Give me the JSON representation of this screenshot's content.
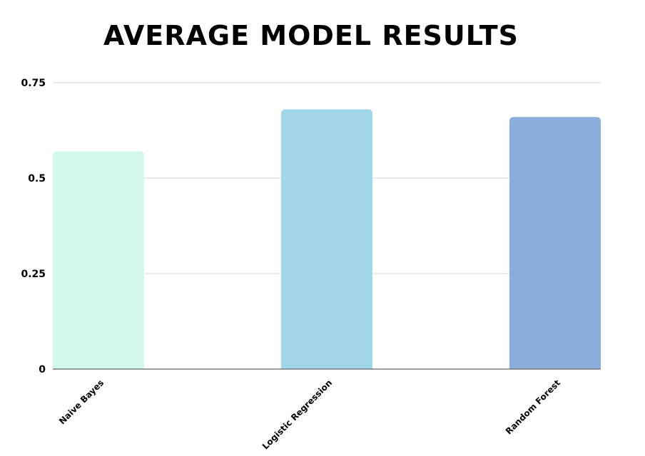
{
  "chart_data": {
    "type": "bar",
    "title": "AVERAGE MODEL RESULTS",
    "categories": [
      "Naive Bayes",
      "Logistic Regression",
      "Random Forest"
    ],
    "values": [
      0.57,
      0.68,
      0.66
    ],
    "colors": [
      "#d2f8ed",
      "#a0d6e7",
      "#8aaed9"
    ],
    "ylim": [
      0,
      0.75
    ],
    "yticks": [
      0,
      0.25,
      0.5,
      0.75
    ],
    "ytick_labels": [
      "0",
      "0.25",
      "0.5",
      "0.75"
    ],
    "xlabel": "",
    "ylabel": "",
    "grid": true,
    "legend": "none"
  }
}
